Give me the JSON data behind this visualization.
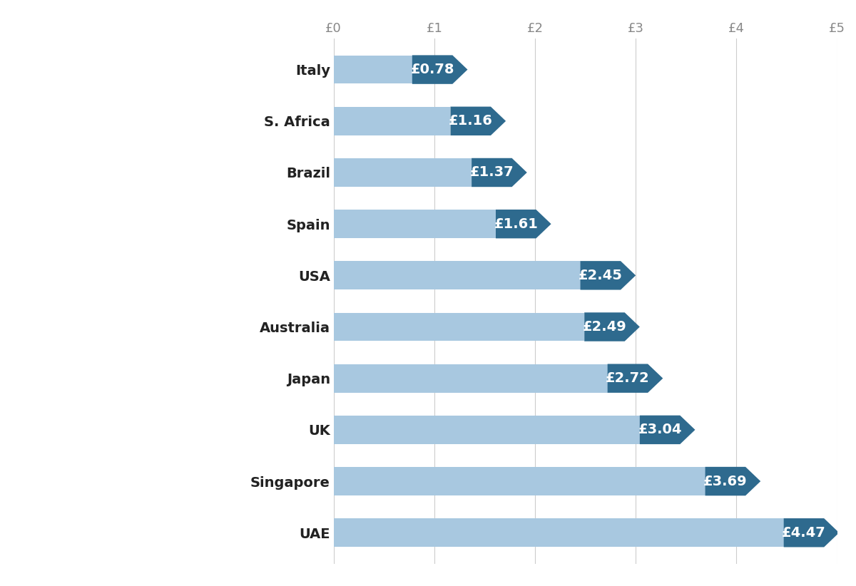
{
  "countries": [
    "Italy",
    "S. Africa",
    "Brazil",
    "Spain",
    "USA",
    "Australia",
    "Japan",
    "UK",
    "Singapore",
    "UAE"
  ],
  "values": [
    0.78,
    1.16,
    1.37,
    1.61,
    2.45,
    2.49,
    2.72,
    3.04,
    3.69,
    4.47
  ],
  "labels": [
    "£0.78",
    "£1.16",
    "£1.37",
    "£1.61",
    "£2.45",
    "£2.49",
    "£2.72",
    "£3.04",
    "£3.69",
    "£4.47"
  ],
  "bar_color": "#a8c8e0",
  "arrow_color": "#2e6a8e",
  "xlim": [
    0,
    5
  ],
  "xticks": [
    0,
    1,
    2,
    3,
    4,
    5
  ],
  "xtick_labels": [
    "£0",
    "£1",
    "£2",
    "£3",
    "£4",
    "£5"
  ],
  "background_color": "#ffffff",
  "bar_height": 0.55,
  "label_fontsize": 14,
  "tick_fontsize": 13,
  "country_fontsize": 14,
  "grid_color": "#cccccc",
  "text_color": "#ffffff",
  "country_label_color": "#222222"
}
